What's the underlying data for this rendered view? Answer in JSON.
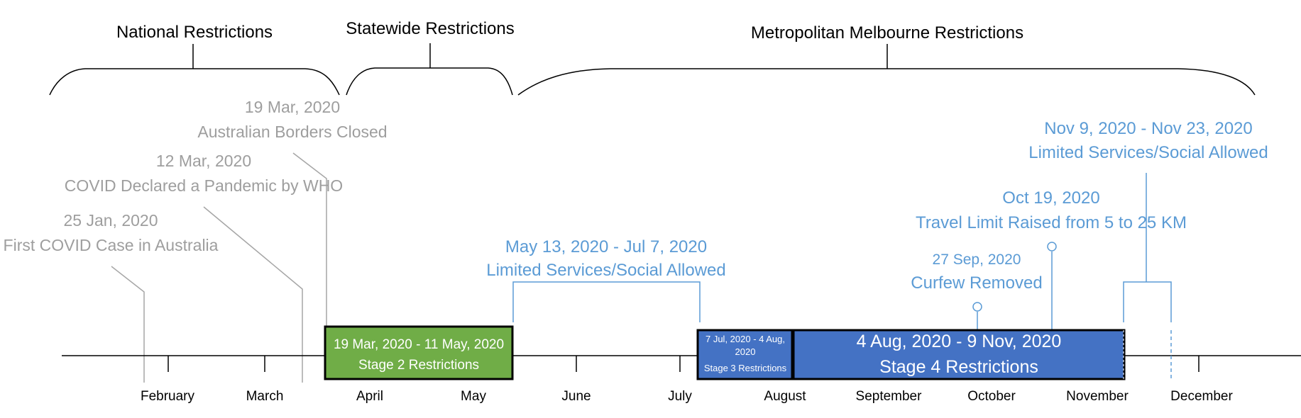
{
  "braces": {
    "national": "National Restrictions",
    "statewide": "Statewide Restrictions",
    "metro": "Metropolitan Melbourne Restrictions"
  },
  "months": [
    "February",
    "March",
    "April",
    "May",
    "June",
    "July",
    "August",
    "September",
    "October",
    "November",
    "December"
  ],
  "events": {
    "borders": {
      "date": "19 Mar, 2020",
      "label": "Australian Borders Closed"
    },
    "pandemic": {
      "date": "12 Mar, 2020",
      "label": "COVID Declared a Pandemic by WHO"
    },
    "first_case": {
      "date": "25 Jan, 2020",
      "label": "First COVID Case in Australia"
    },
    "limited_may": {
      "date": "May 13, 2020 - Jul 7, 2020",
      "label": "Limited Services/Social Allowed"
    },
    "curfew": {
      "date": "27 Sep, 2020",
      "label": "Curfew Removed"
    },
    "travel": {
      "date": "Oct 19, 2020",
      "label": "Travel Limit Raised from 5 to 25 KM"
    },
    "limited_nov": {
      "date": "Nov 9, 2020 - Nov 23, 2020",
      "label": "Limited Services/Social Allowed"
    }
  },
  "bars": {
    "stage2": {
      "dates": "19 Mar, 2020 - 11 May, 2020",
      "label": "Stage 2 Restrictions",
      "color": "#70ad47"
    },
    "stage3": {
      "dates_line1": "7 Jul, 2020 - 4 Aug,",
      "dates_line2": "2020",
      "label": "Stage 3 Restrictions",
      "color": "#4472c4"
    },
    "stage4": {
      "dates": "4 Aug, 2020 - 9 Nov, 2020",
      "label": "Stage 4 Restrictions",
      "color": "#4472c4"
    }
  },
  "colors": {
    "grey_text": "#9e9e9e",
    "blue_text": "#5b9bd5",
    "bar_border": "#000000"
  }
}
